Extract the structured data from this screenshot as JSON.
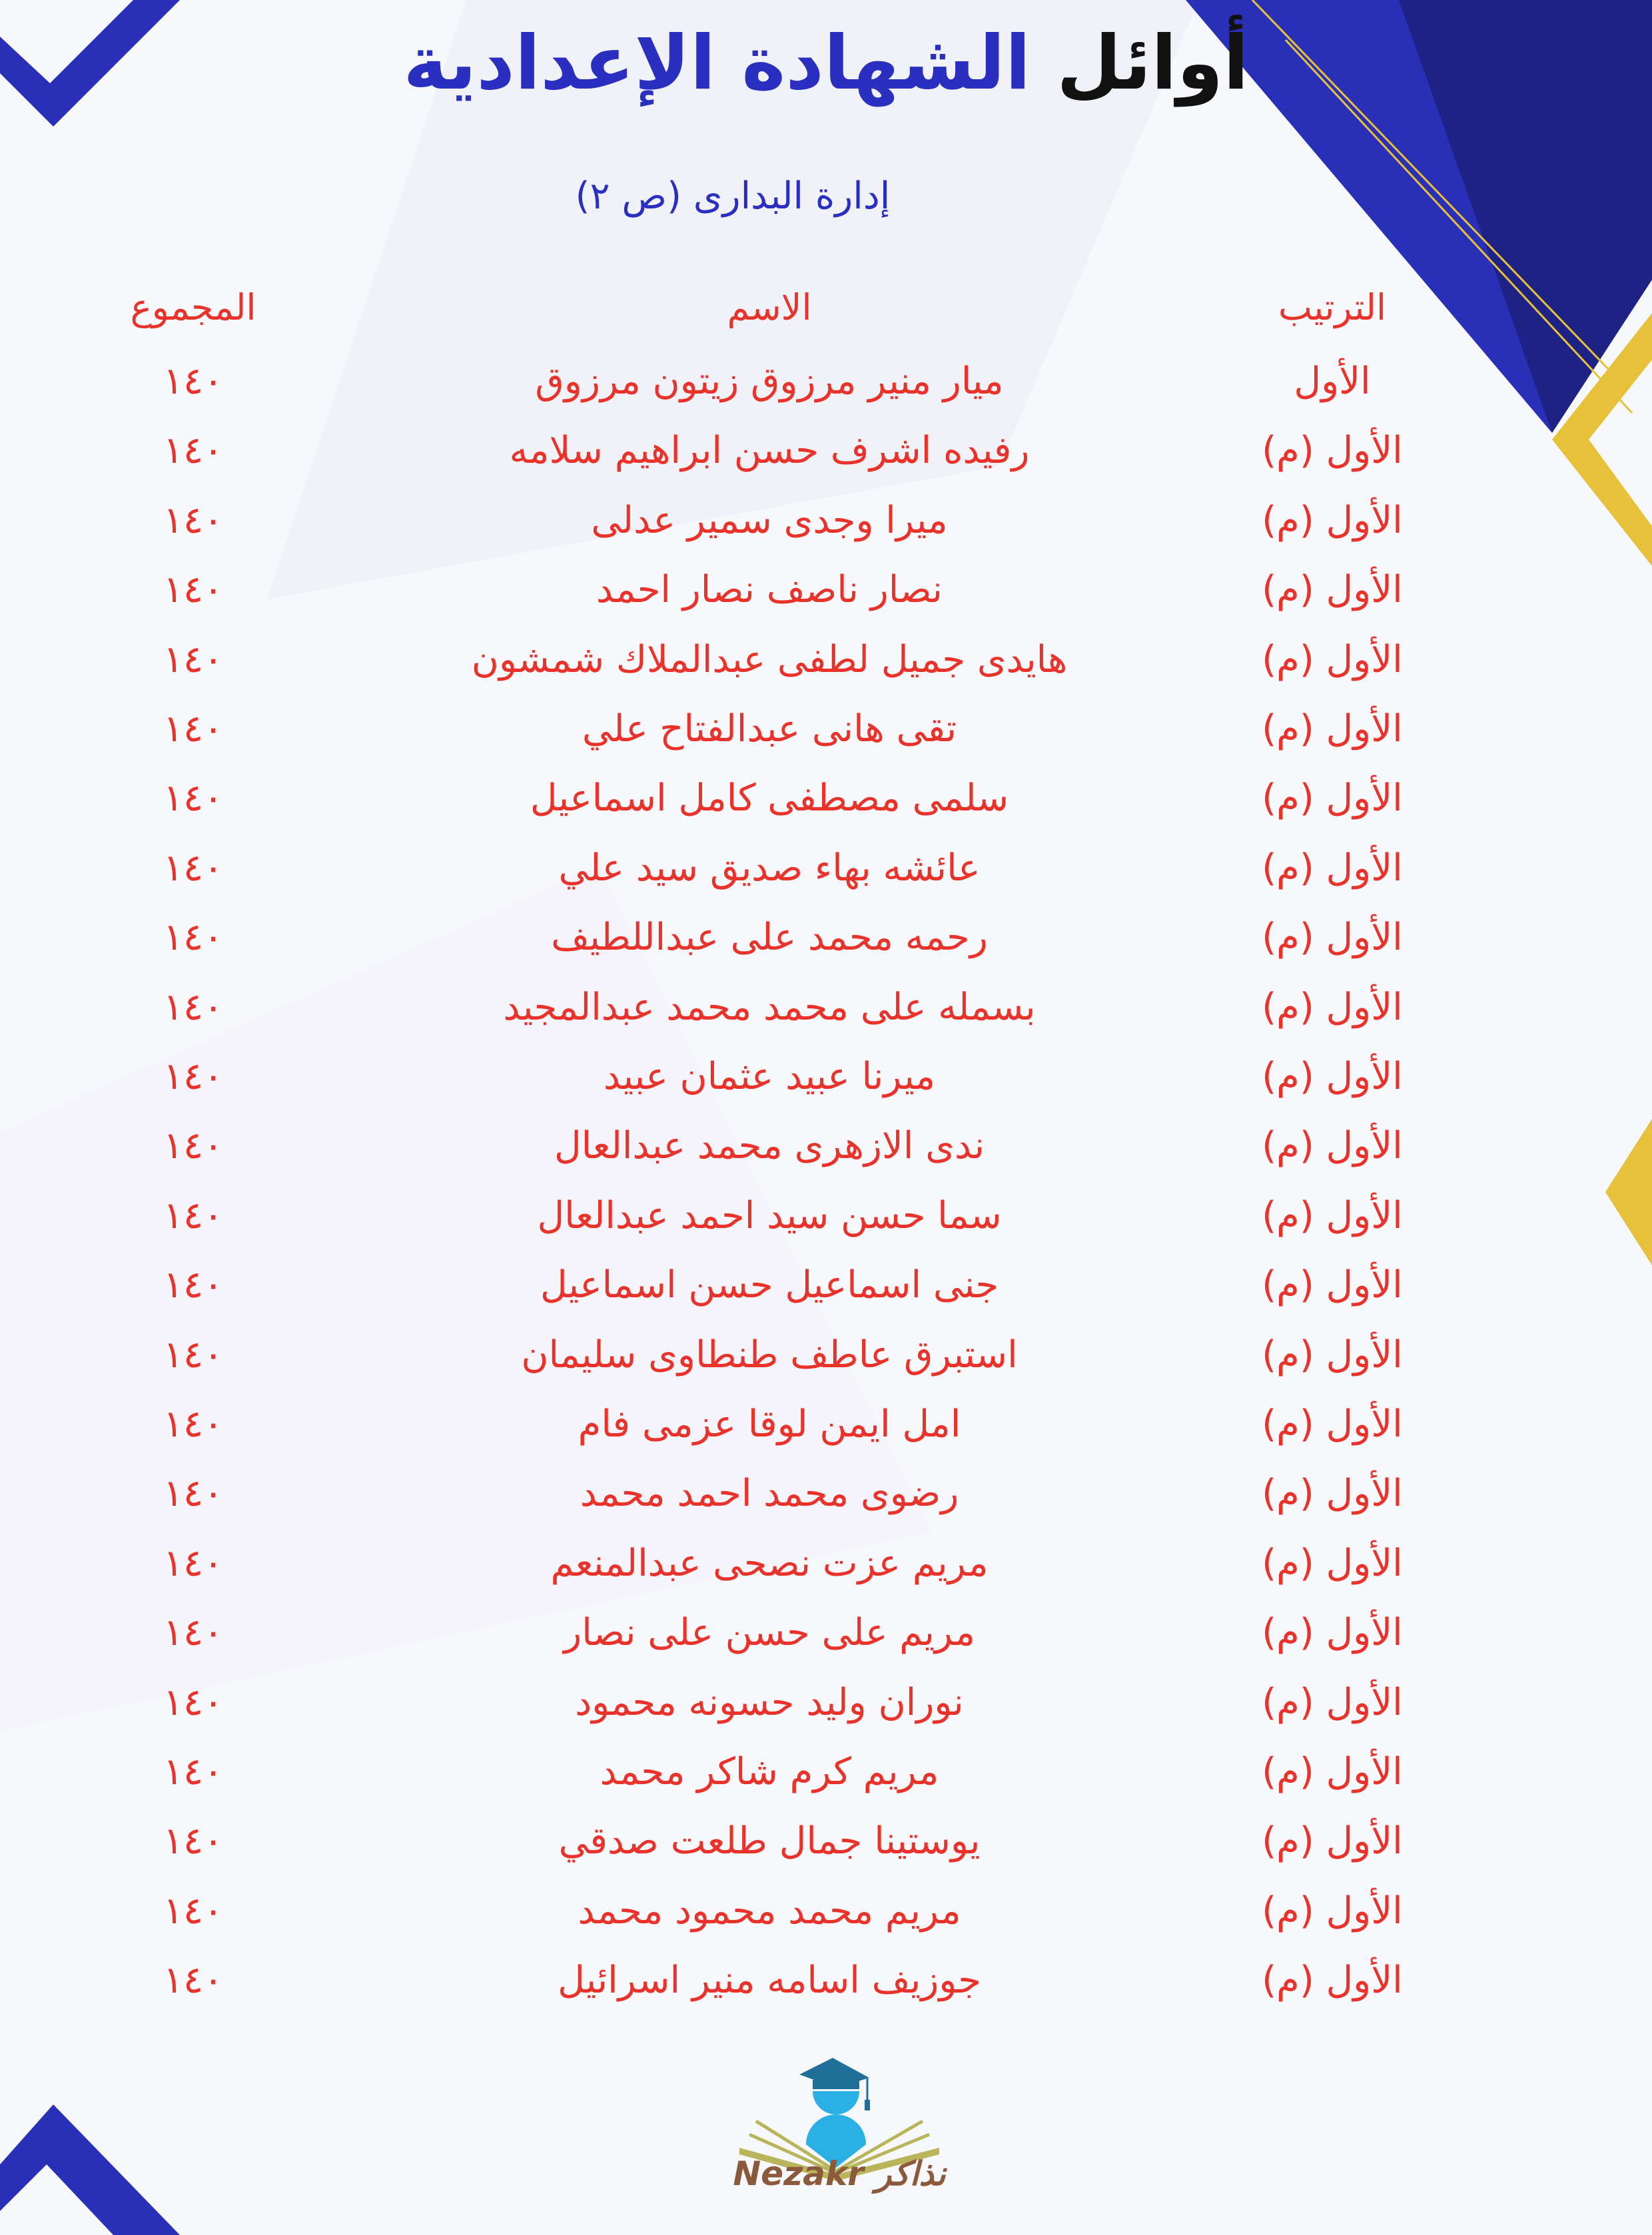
{
  "header": {
    "title_part1": "أوائل",
    "title_part2": "الشهادة الإعدادية",
    "subtitle": "إدارة البدارى (ص ٢)"
  },
  "columns": {
    "rank": "الترتيب",
    "name": "الاسم",
    "total": "المجموع"
  },
  "rows": [
    {
      "rank": "الأول",
      "name": "ميار منير مرزوق زيتون مرزوق",
      "total": "١٤٠"
    },
    {
      "rank": "الأول (م)",
      "name": "رفيده اشرف حسن ابراهيم سلامه",
      "total": "١٤٠"
    },
    {
      "rank": "الأول (م)",
      "name": "ميرا وجدى سمير عدلى",
      "total": "١٤٠"
    },
    {
      "rank": "الأول (م)",
      "name": "نصار ناصف نصار احمد",
      "total": "١٤٠"
    },
    {
      "rank": "الأول (م)",
      "name": "هايدى جميل لطفى عبدالملاك شمشون",
      "total": "١٤٠"
    },
    {
      "rank": "الأول (م)",
      "name": "تقى هانى عبدالفتاح علي",
      "total": "١٤٠"
    },
    {
      "rank": "الأول (م)",
      "name": "سلمى مصطفى كامل اسماعيل",
      "total": "١٤٠"
    },
    {
      "rank": "الأول (م)",
      "name": "عائشه بهاء صديق سيد علي",
      "total": "١٤٠"
    },
    {
      "rank": "الأول (م)",
      "name": "رحمه محمد على عبداللطيف",
      "total": "١٤٠"
    },
    {
      "rank": "الأول (م)",
      "name": "بسمله على محمد محمد عبدالمجيد",
      "total": "١٤٠"
    },
    {
      "rank": "الأول (م)",
      "name": "ميرنا عبيد عثمان عبيد",
      "total": "١٤٠"
    },
    {
      "rank": "الأول (م)",
      "name": "ندى الازهرى محمد عبدالعال",
      "total": "١٤٠"
    },
    {
      "rank": "الأول (م)",
      "name": "سما حسن سيد احمد عبدالعال",
      "total": "١٤٠"
    },
    {
      "rank": "الأول (م)",
      "name": "جنى اسماعيل حسن اسماعيل",
      "total": "١٤٠"
    },
    {
      "rank": "الأول (م)",
      "name": "استبرق عاطف طنطاوى سليمان",
      "total": "١٤٠"
    },
    {
      "rank": "الأول (م)",
      "name": "امل ايمن لوقا عزمى فام",
      "total": "١٤٠"
    },
    {
      "rank": "الأول (م)",
      "name": "رضوى محمد احمد محمد",
      "total": "١٤٠"
    },
    {
      "rank": "الأول (م)",
      "name": "مريم عزت نصحى عبدالمنعم",
      "total": "١٤٠"
    },
    {
      "rank": "الأول (م)",
      "name": "مريم على حسن على نصار",
      "total": "١٤٠"
    },
    {
      "rank": "الأول (م)",
      "name": "نوران وليد حسونه محمود",
      "total": "١٤٠"
    },
    {
      "rank": "الأول (م)",
      "name": "مريم كرم شاكر محمد",
      "total": "١٤٠"
    },
    {
      "rank": "الأول (م)",
      "name": "يوستينا جمال طلعت صدقي",
      "total": "١٤٠"
    },
    {
      "rank": "الأول (م)",
      "name": "مريم محمد محمود محمد",
      "total": "١٤٠"
    },
    {
      "rank": "الأول (م)",
      "name": "جوزيف اسامه منير اسرائيل",
      "total": "١٤٠"
    }
  ],
  "logo": {
    "text": "Nezakr نذاكر"
  },
  "colors": {
    "title_blue": "#2b2fc0",
    "text_red": "#e8322a",
    "deco_blue": "#2a2fb8",
    "deco_gold": "#e8c13a",
    "logo_brown": "#8b5a3c"
  }
}
